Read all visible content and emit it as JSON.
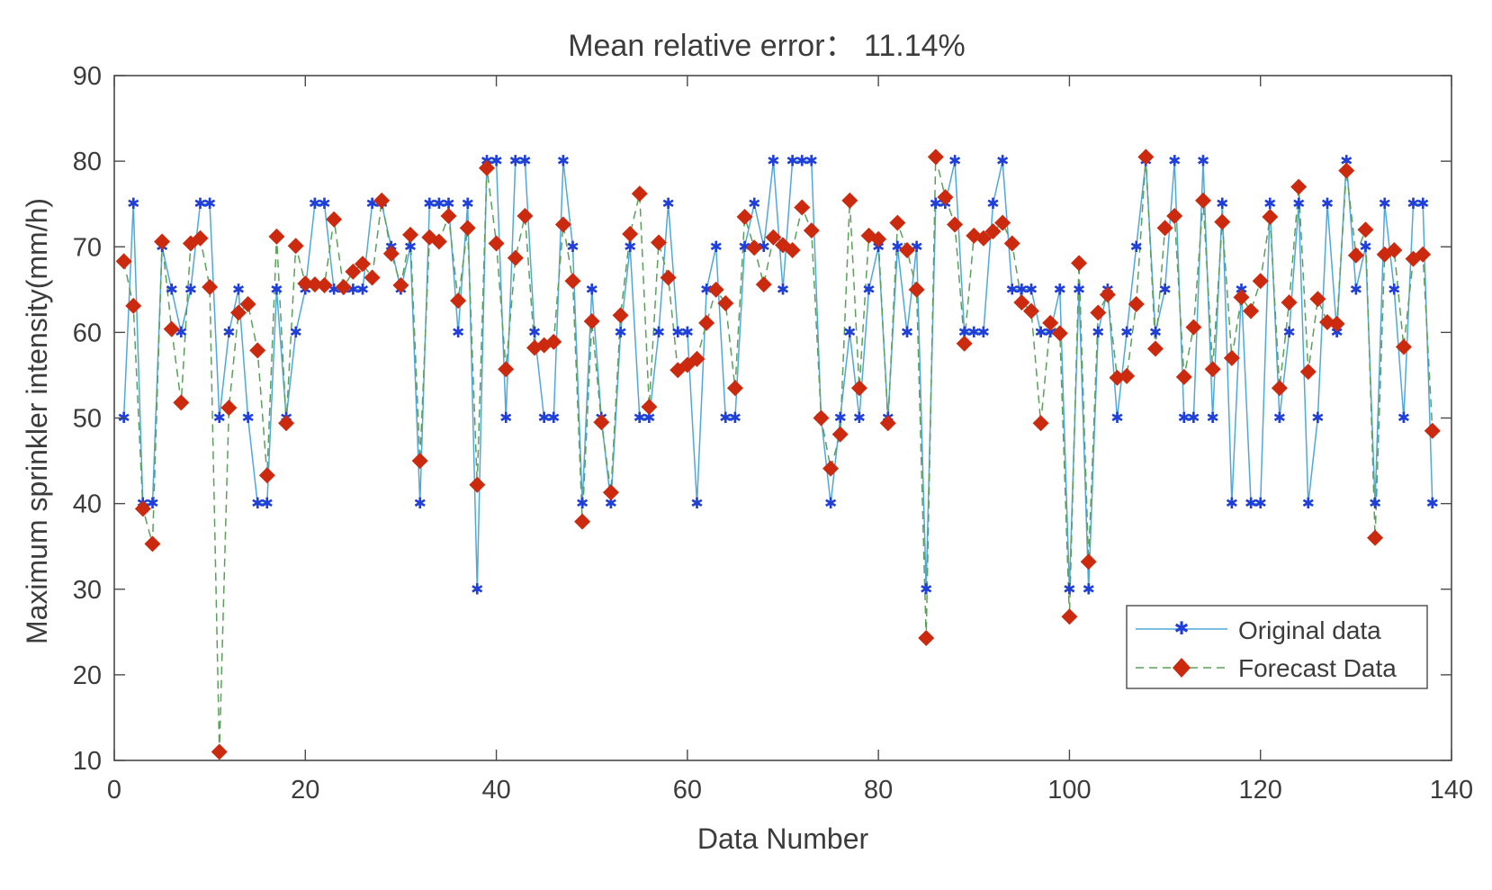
{
  "chart_data": {
    "type": "line",
    "title": "Mean relative error： 11.14%",
    "xlabel": "Data Number",
    "ylabel": "Maximum sprinkler intensity(mm/h)",
    "xlim": [
      0,
      140
    ],
    "ylim": [
      10,
      90
    ],
    "xticks": [
      0,
      20,
      40,
      60,
      80,
      100,
      120,
      140
    ],
    "yticks": [
      10,
      20,
      30,
      40,
      50,
      60,
      70,
      80,
      90
    ],
    "grid": false,
    "legend_position": "bottom-right",
    "x": [
      1,
      2,
      3,
      4,
      5,
      6,
      7,
      8,
      9,
      10,
      11,
      12,
      13,
      14,
      15,
      16,
      17,
      18,
      19,
      20,
      21,
      22,
      23,
      24,
      25,
      26,
      27,
      28,
      29,
      30,
      31,
      32,
      33,
      34,
      35,
      36,
      37,
      38,
      39,
      40,
      41,
      42,
      43,
      44,
      45,
      46,
      47,
      48,
      49,
      50,
      51,
      52,
      53,
      54,
      55,
      56,
      57,
      58,
      59,
      60,
      61,
      62,
      63,
      64,
      65,
      66,
      67,
      68,
      69,
      70,
      71,
      72,
      73,
      74,
      75,
      76,
      77,
      78,
      79,
      80,
      81,
      82,
      83,
      84,
      85,
      86,
      87,
      88,
      89,
      90,
      91,
      92,
      93,
      94,
      95,
      96,
      97,
      98,
      99,
      100,
      101,
      102,
      103,
      104,
      105,
      106,
      107,
      108,
      109,
      110,
      111,
      112,
      113,
      114,
      115,
      116,
      117,
      118,
      119,
      120,
      121,
      122,
      123,
      124,
      125,
      126,
      127,
      128,
      129,
      130,
      131,
      132,
      133,
      134,
      135,
      136,
      137,
      138
    ],
    "series": [
      {
        "name": "Original data",
        "color": "#4fa8dc",
        "marker_color": "#1f3fd8",
        "marker": "star",
        "line_style": "solid",
        "values": [
          50,
          75,
          40,
          40,
          70,
          65,
          60,
          65,
          75,
          75,
          50,
          60,
          65,
          50,
          40,
          40,
          65,
          50,
          60,
          65,
          75,
          75,
          65,
          65,
          65,
          65,
          75,
          75,
          70,
          65,
          70,
          40,
          75,
          75,
          75,
          60,
          75,
          30,
          80,
          80,
          50,
          80,
          80,
          60,
          50,
          50,
          80,
          70,
          40,
          65,
          50,
          40,
          60,
          70,
          50,
          50,
          60,
          75,
          60,
          60,
          40,
          65,
          70,
          50,
          50,
          70,
          75,
          70,
          80,
          65,
          80,
          80,
          80,
          50,
          40,
          50,
          60,
          50,
          65,
          70,
          50,
          70,
          60,
          70,
          30,
          75,
          75,
          80,
          60,
          60,
          60,
          75,
          80,
          65,
          65,
          65,
          60,
          60,
          65,
          30,
          65,
          30,
          60,
          65,
          50,
          60,
          70,
          80,
          60,
          65,
          80,
          50,
          50,
          80,
          50,
          75,
          40,
          65,
          40,
          40,
          75,
          50,
          60,
          75,
          40,
          50,
          75,
          60,
          80,
          65,
          70,
          40,
          75,
          65,
          50,
          75,
          75,
          40
        ]
      },
      {
        "name": "Forecast Data",
        "color": "#5aa05a",
        "marker_color": "#cc2a0e",
        "marker": "diamond",
        "line_style": "dashed",
        "values": [
          68.3,
          63.1,
          39.4,
          35.3,
          70.6,
          60.4,
          51.8,
          70.4,
          71.0,
          65.3,
          11.0,
          51.2,
          62.3,
          63.3,
          57.9,
          43.3,
          71.2,
          49.4,
          70.1,
          65.7,
          65.6,
          65.5,
          73.2,
          65.3,
          67.1,
          68.0,
          66.4,
          75.4,
          69.2,
          65.5,
          71.4,
          45.0,
          71.1,
          70.6,
          73.6,
          63.7,
          72.2,
          42.2,
          79.2,
          70.4,
          55.7,
          68.7,
          73.6,
          58.2,
          58.5,
          58.9,
          72.6,
          66.0,
          37.9,
          61.3,
          49.5,
          41.3,
          62.0,
          71.5,
          76.2,
          51.3,
          70.5,
          66.4,
          55.6,
          56.2,
          56.9,
          61.1,
          65.0,
          63.4,
          53.5,
          73.5,
          69.9,
          65.6,
          71.1,
          70.2,
          69.6,
          74.6,
          71.9,
          50.0,
          44.1,
          48.1,
          75.4,
          53.5,
          71.3,
          70.9,
          49.4,
          72.8,
          69.6,
          65.0,
          24.3,
          80.5,
          75.8,
          72.6,
          58.7,
          71.3,
          71.0,
          71.8,
          72.8,
          70.4,
          63.5,
          62.5,
          49.4,
          61.1,
          59.9,
          26.8,
          68.1,
          33.2,
          62.3,
          64.4,
          54.7,
          54.9,
          63.3,
          80.5,
          58.1,
          72.2,
          73.6,
          54.8,
          60.6,
          75.4,
          55.7,
          72.9,
          57.0,
          64.1,
          62.5,
          66.0,
          73.5,
          53.5,
          63.5,
          77.0,
          55.4,
          63.9,
          61.2,
          61.0,
          78.9,
          69.0,
          72.0,
          36.0,
          69.1,
          69.6,
          58.3,
          68.6,
          69.1,
          48.5
        ]
      }
    ]
  }
}
